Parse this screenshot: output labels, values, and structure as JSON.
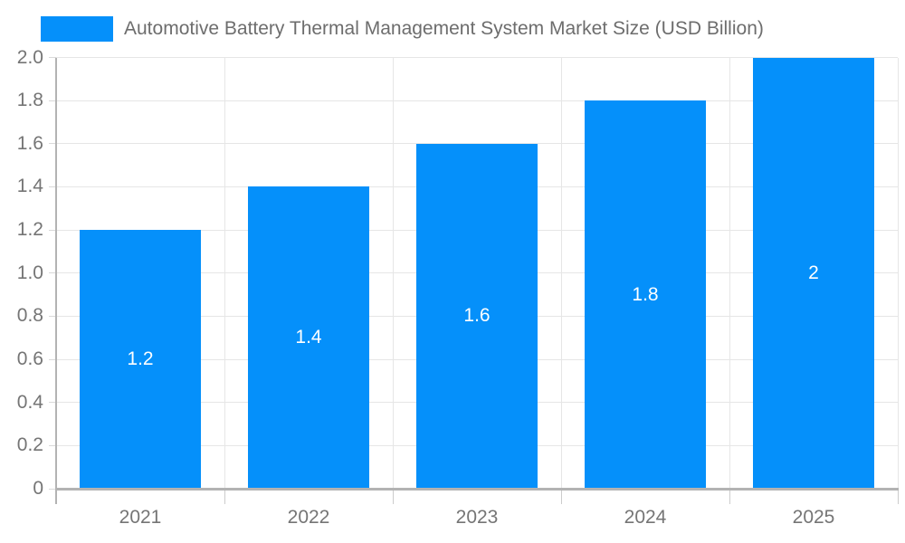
{
  "chart_data": {
    "type": "bar",
    "title": "Automotive Battery Thermal Management System Market Size (USD Billion)",
    "categories": [
      "2021",
      "2022",
      "2023",
      "2024",
      "2025"
    ],
    "series": [
      {
        "name": "Automotive Battery Thermal Management System Market Size (USD Billion)",
        "values": [
          1.2,
          1.4,
          1.6,
          1.8,
          2
        ]
      }
    ],
    "data_labels": [
      "1.2",
      "1.4",
      "1.6",
      "1.8",
      "2"
    ],
    "xlabel": "",
    "ylabel": "",
    "ylim": [
      0,
      2
    ],
    "ytick_step": 0.2,
    "ytick_labels": [
      "0",
      "0.2",
      "0.4",
      "0.6",
      "0.8",
      "1.0",
      "1.2",
      "1.4",
      "1.6",
      "1.8",
      "2.0"
    ],
    "grid": true,
    "legend_position": "top-left",
    "colors": {
      "bar": "#0590FA",
      "grid": "#e6e6e6",
      "axis": "#b3b3b3",
      "tick_stub": "#cccccc",
      "axis_label": "#757575",
      "title": "#6d6d6d",
      "value_label": "#ffffff",
      "background": "#ffffff"
    }
  }
}
